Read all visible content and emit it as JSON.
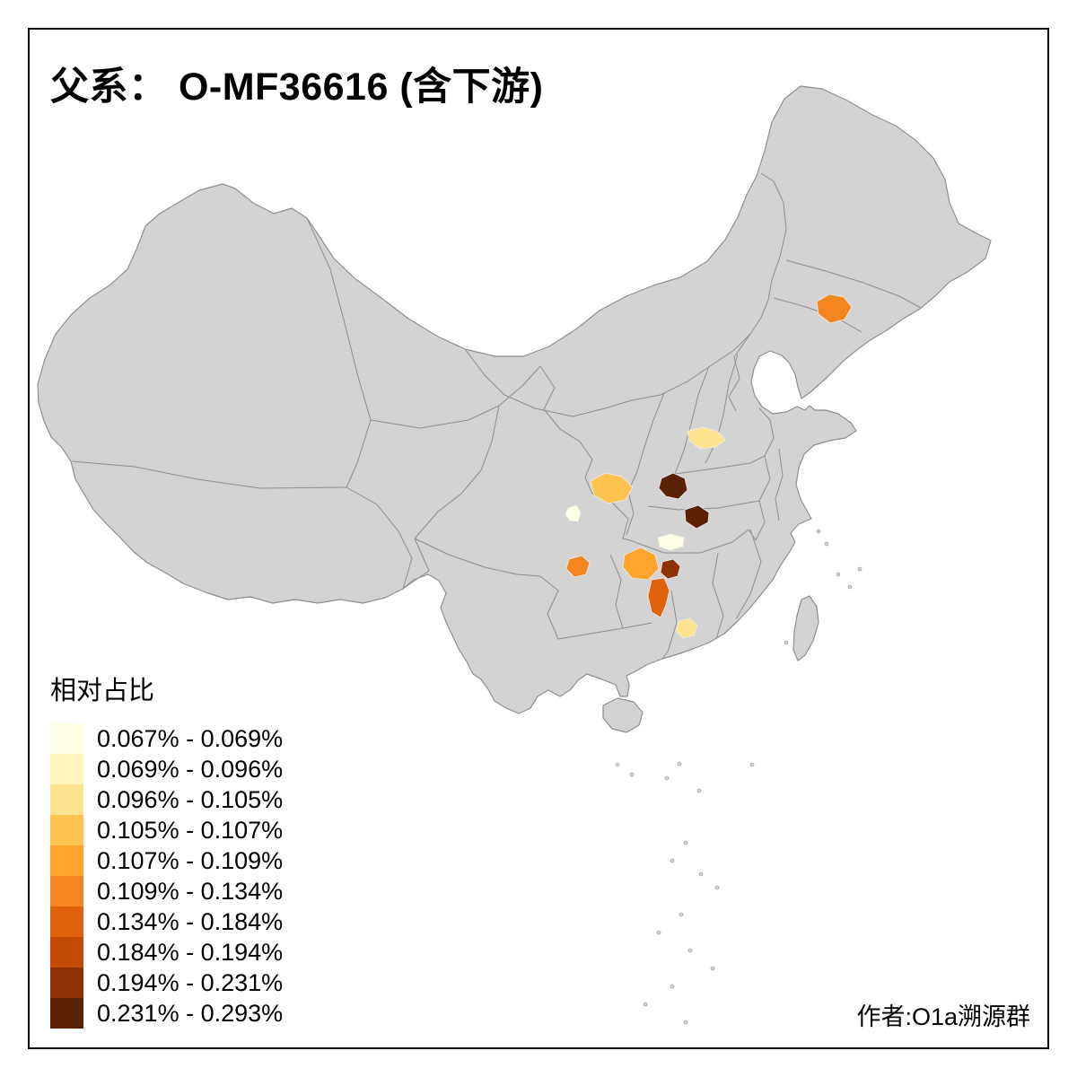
{
  "title": "父系：  O-MF36616 (含下游)",
  "credit": "作者:O1a溯源群",
  "legend": {
    "title": "相对占比",
    "items": [
      {
        "label": "0.067% - 0.069%",
        "color": "#FFFFE5"
      },
      {
        "label": "0.069% - 0.096%",
        "color": "#FFF7BC"
      },
      {
        "label": "0.096% - 0.105%",
        "color": "#FEE391"
      },
      {
        "label": "0.105% - 0.107%",
        "color": "#FEC44F"
      },
      {
        "label": "0.107% - 0.109%",
        "color": "#FEA52E"
      },
      {
        "label": "0.109% - 0.134%",
        "color": "#F5861F"
      },
      {
        "label": "0.134% - 0.184%",
        "color": "#E0620D"
      },
      {
        "label": "0.184% - 0.194%",
        "color": "#C24A02"
      },
      {
        "label": "0.194% - 0.231%",
        "color": "#8E3104"
      },
      {
        "label": "0.231% - 0.293%",
        "color": "#5A2104"
      }
    ]
  },
  "map": {
    "land_color": "#D3D3D3",
    "border_color": "#8F8F8F",
    "region_outline_color": "#EDEDED",
    "frame_color": "#000000",
    "regions": [
      {
        "id": "region-northeast",
        "color": "#F5861F"
      },
      {
        "id": "region-central-plain",
        "color": "#FEE391"
      },
      {
        "id": "region-chongqing",
        "color": "#FEC44F"
      },
      {
        "id": "region-small-cream-west",
        "color": "#FFFFE5"
      },
      {
        "id": "region-dark-brown-north",
        "color": "#5A2104"
      },
      {
        "id": "region-dark-brown-east",
        "color": "#5A2104"
      },
      {
        "id": "region-cream-central",
        "color": "#FFFFE5"
      },
      {
        "id": "region-guizhou-orange",
        "color": "#F5861F"
      },
      {
        "id": "region-west-hunan-orange",
        "color": "#FEA52E"
      },
      {
        "id": "region-dark-red-central",
        "color": "#8E3104"
      },
      {
        "id": "region-orange-strip-south",
        "color": "#E0620D"
      },
      {
        "id": "region-pale-yellow-south",
        "color": "#FEE391"
      }
    ]
  }
}
